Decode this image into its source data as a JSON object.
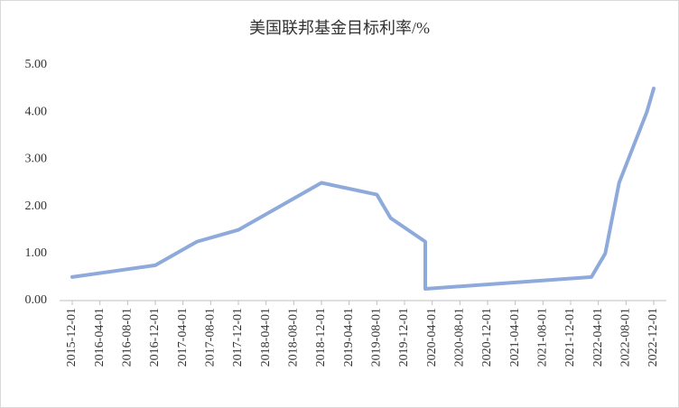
{
  "chart_data": {
    "type": "line",
    "title": "美国联邦基金目标利率/%",
    "x": [
      "2015-12-01",
      "2016-12-01",
      "2017-06-01",
      "2017-12-01",
      "2018-12-01",
      "2019-08-01",
      "2019-10-01",
      "2020-03-01",
      "2020-03-01",
      "2022-03-01",
      "2022-05-01",
      "2022-07-01",
      "2022-11-01",
      "2022-12-01"
    ],
    "series": [
      {
        "color": "#8eaadb",
        "values": [
          0.5,
          0.75,
          1.25,
          1.5,
          2.5,
          2.25,
          1.75,
          1.25,
          0.25,
          0.5,
          1.0,
          2.5,
          4.0,
          4.5
        ]
      }
    ],
    "xlim": [
      "2015-12-01",
      "2022-12-01"
    ],
    "xticks": [
      "2015-12-01",
      "2016-04-01",
      "2016-08-01",
      "2016-12-01",
      "2017-04-01",
      "2017-08-01",
      "2017-12-01",
      "2018-04-01",
      "2018-08-01",
      "2018-12-01",
      "2019-04-01",
      "2019-08-01",
      "2019-12-01",
      "2020-04-01",
      "2020-08-01",
      "2020-12-01",
      "2021-04-01",
      "2021-08-01",
      "2021-12-01",
      "2022-04-01",
      "2022-08-01",
      "2022-12-01"
    ],
    "ylim": [
      0,
      5
    ],
    "yticks": [
      {
        "value": 0,
        "label": "0.00"
      },
      {
        "value": 1,
        "label": "1.00"
      },
      {
        "value": 2,
        "label": "2.00"
      },
      {
        "value": 3,
        "label": "3.00"
      },
      {
        "value": 4,
        "label": "4.00"
      },
      {
        "value": 5,
        "label": "5.00"
      }
    ],
    "grid": false
  }
}
